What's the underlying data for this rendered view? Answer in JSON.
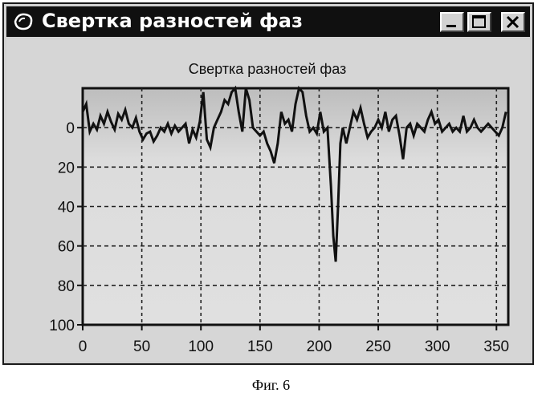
{
  "window": {
    "title": "Свертка разностей фаз",
    "icon": "app-icon",
    "controls": [
      "minimize-icon",
      "maximize-icon",
      "close-icon"
    ]
  },
  "caption": "Фиг. 6",
  "chart_data": {
    "type": "line",
    "title": "Свертка разностей фаз",
    "xlabel": "",
    "ylabel": "",
    "xlim": [
      0,
      360
    ],
    "ylim": [
      -20,
      100
    ],
    "y_inverted": true,
    "grid": true,
    "xticks": [
      0,
      50,
      100,
      150,
      200,
      250,
      300,
      350
    ],
    "yticks": [
      0,
      20,
      40,
      60,
      80,
      100
    ],
    "series": [
      {
        "color": "#111111",
        "x": [
          0,
          3,
          6,
          9,
          12,
          15,
          18,
          21,
          24,
          27,
          30,
          33,
          36,
          39,
          42,
          45,
          48,
          51,
          54,
          57,
          60,
          63,
          66,
          69,
          72,
          75,
          78,
          81,
          84,
          87,
          90,
          93,
          96,
          99,
          102,
          105,
          108,
          111,
          114,
          117,
          120,
          123,
          126,
          129,
          132,
          135,
          138,
          141,
          144,
          147,
          150,
          153,
          156,
          159,
          162,
          165,
          168,
          171,
          174,
          177,
          180,
          183,
          186,
          189,
          192,
          195,
          198,
          201,
          204,
          207,
          210,
          212,
          214,
          216,
          218,
          220,
          223,
          226,
          229,
          232,
          235,
          238,
          241,
          244,
          247,
          250,
          253,
          256,
          259,
          262,
          265,
          268,
          271,
          274,
          277,
          280,
          283,
          286,
          289,
          292,
          295,
          298,
          301,
          304,
          307,
          310,
          313,
          316,
          319,
          322,
          325,
          328,
          331,
          334,
          337,
          340,
          343,
          346,
          349,
          352,
          355,
          358
        ],
        "y": [
          -8,
          -12,
          2,
          -2,
          1,
          -6,
          -2,
          -8,
          -3,
          1,
          -7,
          -4,
          -9,
          -2,
          0,
          -5,
          2,
          6,
          3,
          2,
          7,
          4,
          0,
          2,
          -2,
          3,
          -1,
          2,
          0,
          -2,
          8,
          1,
          5,
          -3,
          -18,
          6,
          10,
          0,
          -4,
          -8,
          -14,
          -12,
          -18,
          -20,
          -8,
          2,
          -20,
          -14,
          0,
          2,
          4,
          2,
          8,
          12,
          18,
          8,
          -8,
          -2,
          -4,
          2,
          -12,
          -20,
          -18,
          -6,
          2,
          0,
          3,
          -8,
          2,
          0,
          30,
          55,
          68,
          40,
          8,
          0,
          8,
          0,
          -8,
          -4,
          -10,
          -2,
          5,
          2,
          0,
          -4,
          0,
          -8,
          2,
          -4,
          -6,
          4,
          16,
          0,
          -2,
          4,
          -2,
          0,
          2,
          -4,
          -8,
          -2,
          -4,
          2,
          0,
          -2,
          2,
          0,
          2,
          -6,
          2,
          0,
          -4,
          0,
          2,
          0,
          -2,
          0,
          2,
          4,
          0,
          -8
        ]
      }
    ]
  }
}
